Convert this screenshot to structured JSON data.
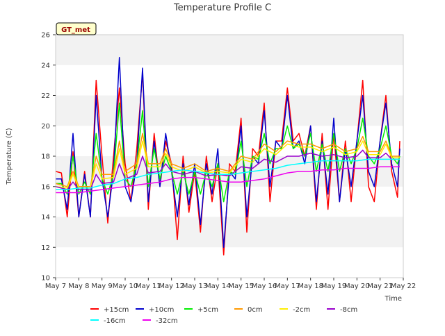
{
  "chart_data": {
    "type": "line",
    "title": "Temperature Profile C",
    "xlabel": "Time",
    "ylabel": "Temperature (C)",
    "site_badge": "GT_met",
    "ylim": [
      10,
      26
    ],
    "yticks": [
      10,
      12,
      14,
      16,
      18,
      20,
      22,
      24,
      26
    ],
    "xlim": [
      0,
      15
    ],
    "xticks": [
      "May 7",
      "May 8",
      "May 9",
      "May 10",
      "May 11",
      "May 12",
      "May 13",
      "May 14",
      "May 15",
      "May 16",
      "May 17",
      "May 18",
      "May 19",
      "May 20",
      "May 21",
      "May 22"
    ],
    "grid": "horizontal bands",
    "legend_position": "bottom",
    "x_units": "days since May 7 00:00",
    "series": [
      {
        "name": "+15cm",
        "color": "#ff0000",
        "x": [
          0.0,
          0.25,
          0.5,
          0.75,
          1.0,
          1.25,
          1.5,
          1.75,
          2.0,
          2.25,
          2.5,
          2.75,
          3.0,
          3.25,
          3.5,
          3.75,
          4.0,
          4.25,
          4.5,
          4.75,
          5.0,
          5.25,
          5.5,
          5.75,
          6.0,
          6.25,
          6.5,
          6.75,
          7.0,
          7.25,
          7.5,
          7.75,
          8.0,
          8.25,
          8.5,
          8.75,
          9.0,
          9.25,
          9.5,
          9.75,
          10.0,
          10.25,
          10.5,
          10.75,
          11.0,
          11.25,
          11.5,
          11.75,
          12.0,
          12.25,
          12.5,
          12.75,
          13.0,
          13.25,
          13.5,
          13.75,
          14.0,
          14.25,
          14.5,
          14.75,
          14.85
        ],
        "values": [
          17.0,
          16.9,
          14.0,
          18.3,
          14.0,
          17.0,
          14.0,
          23.0,
          18.0,
          13.6,
          18.0,
          22.5,
          17.5,
          15.0,
          18.5,
          23.5,
          14.5,
          19.5,
          16.0,
          19.0,
          17.5,
          12.5,
          18.0,
          14.3,
          17.0,
          13.0,
          18.0,
          15.0,
          17.5,
          11.5,
          17.5,
          17.0,
          20.5,
          13.0,
          18.5,
          18.0,
          21.5,
          15.0,
          19.0,
          19.0,
          22.5,
          19.0,
          19.5,
          18.0,
          20.0,
          14.5,
          19.5,
          14.5,
          19.5,
          15.0,
          19.0,
          15.0,
          19.0,
          23.0,
          16.0,
          15.0,
          19.0,
          22.0,
          17.0,
          15.3,
          19.0
        ]
      },
      {
        "name": "+10cm",
        "color": "#0000cc",
        "x": [
          0.0,
          0.25,
          0.5,
          0.75,
          1.0,
          1.25,
          1.5,
          1.75,
          2.0,
          2.25,
          2.5,
          2.75,
          3.0,
          3.25,
          3.5,
          3.75,
          4.0,
          4.25,
          4.5,
          4.75,
          5.0,
          5.25,
          5.5,
          5.75,
          6.0,
          6.25,
          6.5,
          6.75,
          7.0,
          7.25,
          7.5,
          7.75,
          8.0,
          8.25,
          8.5,
          8.75,
          9.0,
          9.25,
          9.5,
          9.75,
          10.0,
          10.25,
          10.5,
          10.75,
          11.0,
          11.25,
          11.5,
          11.75,
          12.0,
          12.25,
          12.5,
          12.75,
          13.0,
          13.25,
          13.5,
          13.75,
          14.0,
          14.25,
          14.5,
          14.75,
          14.85
        ],
        "values": [
          16.5,
          16.5,
          14.5,
          19.5,
          14.0,
          16.8,
          14.0,
          22.0,
          16.5,
          14.0,
          17.0,
          24.5,
          16.0,
          15.0,
          17.5,
          23.8,
          15.0,
          19.0,
          16.0,
          19.5,
          17.0,
          14.0,
          17.5,
          14.8,
          17.5,
          13.5,
          17.5,
          15.5,
          18.5,
          12.0,
          17.0,
          16.5,
          20.0,
          14.0,
          18.0,
          17.5,
          21.0,
          16.0,
          19.0,
          18.5,
          22.0,
          18.5,
          19.0,
          17.5,
          20.0,
          15.0,
          19.0,
          15.5,
          20.5,
          15.0,
          18.5,
          16.0,
          19.0,
          22.0,
          17.0,
          16.0,
          19.0,
          21.5,
          17.5,
          16.0,
          18.5
        ]
      },
      {
        "name": "+5cm",
        "color": "#00ee00",
        "x": [
          0.0,
          0.25,
          0.5,
          0.75,
          1.0,
          1.25,
          1.5,
          1.75,
          2.0,
          2.25,
          2.5,
          2.75,
          3.0,
          3.25,
          3.5,
          3.75,
          4.0,
          4.25,
          4.5,
          4.75,
          5.0,
          5.25,
          5.5,
          5.75,
          6.0,
          6.25,
          6.5,
          6.75,
          7.0,
          7.25,
          7.5,
          7.75,
          8.0,
          8.25,
          8.5,
          8.75,
          9.0,
          9.25,
          9.5,
          9.75,
          10.0,
          10.25,
          10.5,
          10.75,
          11.0,
          11.25,
          11.5,
          11.75,
          12.0,
          12.25,
          12.5,
          12.75,
          13.0,
          13.25,
          13.5,
          13.75,
          14.0,
          14.25,
          14.5,
          14.75,
          14.85
        ],
        "values": [
          16.2,
          16.2,
          15.5,
          18.0,
          15.5,
          16.3,
          15.5,
          19.5,
          16.5,
          15.5,
          16.8,
          21.5,
          16.5,
          16.0,
          17.5,
          21.0,
          16.0,
          18.5,
          16.5,
          18.0,
          17.0,
          15.5,
          17.0,
          15.5,
          17.0,
          15.5,
          17.0,
          16.0,
          17.5,
          15.0,
          17.0,
          16.8,
          19.0,
          16.0,
          18.0,
          17.8,
          19.5,
          17.5,
          18.5,
          18.5,
          20.0,
          18.5,
          18.8,
          18.0,
          19.5,
          17.0,
          18.8,
          17.0,
          19.5,
          17.0,
          18.5,
          17.5,
          18.5,
          20.5,
          18.0,
          17.5,
          18.5,
          20.0,
          18.0,
          17.5,
          18.0
        ]
      },
      {
        "name": "0cm",
        "color": "#ff9900",
        "x": [
          0.0,
          0.5,
          0.75,
          1.0,
          1.5,
          1.75,
          2.0,
          2.5,
          2.75,
          3.0,
          3.5,
          3.75,
          4.0,
          4.5,
          4.75,
          5.0,
          5.5,
          6.0,
          6.5,
          7.0,
          7.5,
          8.0,
          8.5,
          9.0,
          9.5,
          10.0,
          10.5,
          11.0,
          11.5,
          12.0,
          12.5,
          13.0,
          13.25,
          13.5,
          14.0,
          14.25,
          14.5,
          14.85
        ],
        "values": [
          16.2,
          16.0,
          17.0,
          16.0,
          16.0,
          18.0,
          16.8,
          16.8,
          19.0,
          17.0,
          17.5,
          19.5,
          17.5,
          17.5,
          18.5,
          17.5,
          17.2,
          17.5,
          17.0,
          17.2,
          17.0,
          18.0,
          17.8,
          18.8,
          18.3,
          19.0,
          18.8,
          18.8,
          18.5,
          18.8,
          18.3,
          18.5,
          19.3,
          18.3,
          18.3,
          19.0,
          18.0,
          18.0
        ]
      },
      {
        "name": "-2cm",
        "color": "#ffee00",
        "x": [
          0.0,
          0.5,
          0.75,
          1.0,
          1.5,
          1.75,
          2.0,
          2.5,
          2.75,
          3.0,
          3.5,
          3.75,
          4.0,
          4.5,
          4.75,
          5.0,
          5.5,
          6.0,
          6.5,
          7.0,
          7.5,
          8.0,
          8.5,
          9.0,
          9.5,
          10.0,
          10.5,
          11.0,
          11.5,
          12.0,
          12.5,
          13.0,
          13.25,
          13.5,
          14.0,
          14.25,
          14.5,
          14.85
        ],
        "values": [
          16.0,
          15.9,
          16.8,
          15.9,
          15.9,
          17.5,
          16.5,
          16.6,
          18.5,
          16.8,
          17.2,
          19.0,
          17.3,
          17.3,
          18.2,
          17.3,
          17.0,
          17.3,
          16.9,
          17.0,
          16.9,
          17.8,
          17.6,
          18.5,
          18.1,
          18.8,
          18.6,
          18.6,
          18.3,
          18.6,
          18.1,
          18.3,
          19.0,
          18.1,
          18.1,
          18.8,
          17.9,
          17.9
        ]
      },
      {
        "name": "-8cm",
        "color": "#9900cc",
        "x": [
          0.0,
          0.5,
          0.75,
          1.0,
          1.5,
          1.75,
          2.0,
          2.5,
          2.75,
          3.0,
          3.5,
          3.75,
          4.0,
          4.5,
          4.75,
          5.0,
          5.5,
          6.0,
          6.5,
          7.0,
          7.5,
          8.0,
          8.5,
          9.0,
          9.5,
          10.0,
          10.5,
          11.0,
          11.5,
          12.0,
          12.5,
          13.0,
          13.25,
          13.5,
          14.0,
          14.25,
          14.5,
          14.85
        ],
        "values": [
          16.0,
          15.8,
          16.3,
          15.8,
          15.8,
          16.8,
          16.2,
          16.3,
          17.5,
          16.5,
          16.8,
          18.0,
          16.9,
          17.0,
          17.5,
          17.0,
          16.8,
          17.0,
          16.7,
          16.8,
          16.7,
          17.3,
          17.2,
          17.8,
          17.6,
          18.0,
          18.0,
          18.2,
          18.0,
          18.1,
          17.9,
          18.0,
          18.4,
          17.9,
          17.9,
          18.2,
          17.8,
          17.8
        ]
      },
      {
        "name": "-16cm",
        "color": "#00ffff",
        "x": [
          0.0,
          0.5,
          1.0,
          1.5,
          2.0,
          2.5,
          3.0,
          3.5,
          4.0,
          4.5,
          5.0,
          5.5,
          6.0,
          6.5,
          7.0,
          7.5,
          8.0,
          8.5,
          9.0,
          9.5,
          10.0,
          10.5,
          11.0,
          11.5,
          12.0,
          12.5,
          13.0,
          13.5,
          14.0,
          14.5,
          14.85
        ],
        "values": [
          15.8,
          15.8,
          15.9,
          15.9,
          16.1,
          16.2,
          16.5,
          16.6,
          16.8,
          16.9,
          17.0,
          17.1,
          17.0,
          16.9,
          16.8,
          16.8,
          16.9,
          17.0,
          17.1,
          17.2,
          17.4,
          17.5,
          17.6,
          17.7,
          17.7,
          17.7,
          17.7,
          17.8,
          17.8,
          17.8,
          17.8
        ]
      },
      {
        "name": "-32cm",
        "color": "#ee00ee",
        "x": [
          0.0,
          0.5,
          1.0,
          1.5,
          2.0,
          2.5,
          3.0,
          3.5,
          4.0,
          4.5,
          5.0,
          5.5,
          6.0,
          6.5,
          7.0,
          7.5,
          8.0,
          8.5,
          9.0,
          9.5,
          10.0,
          10.5,
          11.0,
          11.5,
          12.0,
          12.5,
          13.0,
          13.5,
          14.0,
          14.5,
          14.85
        ],
        "values": [
          15.6,
          15.6,
          15.6,
          15.7,
          15.8,
          15.9,
          16.0,
          16.1,
          16.2,
          16.3,
          16.5,
          16.6,
          16.6,
          16.5,
          16.4,
          16.3,
          16.3,
          16.4,
          16.5,
          16.7,
          16.9,
          17.0,
          17.0,
          17.1,
          17.1,
          17.2,
          17.2,
          17.2,
          17.3,
          17.3,
          17.3
        ]
      }
    ]
  }
}
